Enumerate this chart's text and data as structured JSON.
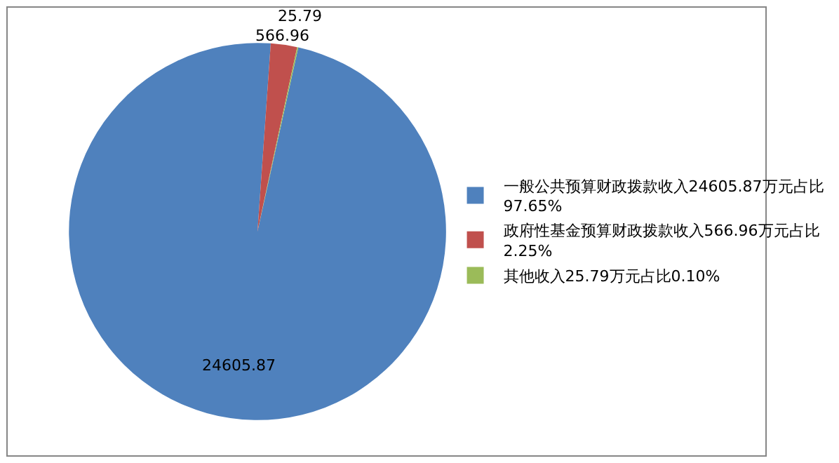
{
  "chart_data": {
    "type": "pie",
    "categories": [
      "一般公共预算财政拨款收入24605.87万元占比97.65%",
      "政府性基金预算财政拨款收入566.96万元占比2.25%",
      "其他收入25.79万元占比0.10%"
    ],
    "values": [
      24605.87,
      566.96,
      25.79
    ],
    "colors": [
      "#4f81bd",
      "#c0504d",
      "#9bbb59"
    ],
    "data_labels": true,
    "legend": "right"
  }
}
